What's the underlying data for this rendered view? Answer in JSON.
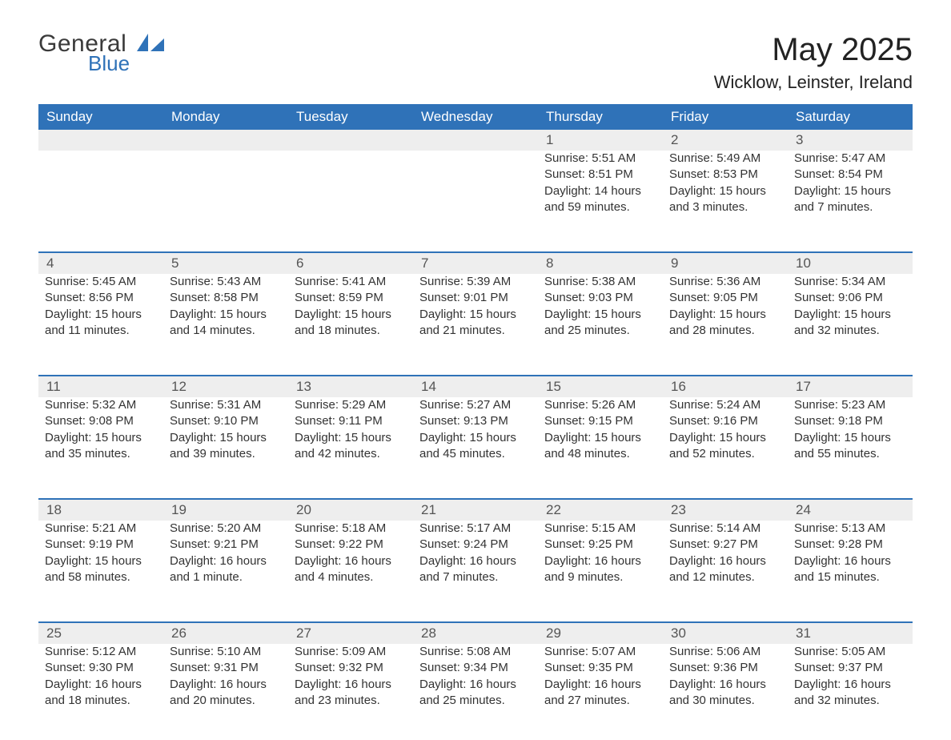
{
  "logo": {
    "line1": "General",
    "line2": "Blue",
    "color_text": "#3a3a3a",
    "color_accent": "#2f72b8"
  },
  "header": {
    "month_title": "May 2025",
    "location": "Wicklow, Leinster, Ireland"
  },
  "theme": {
    "header_bg": "#2f72b8",
    "header_fg": "#ffffff",
    "daynum_bg": "#eeeeee",
    "daynum_fg": "#555555",
    "body_fg": "#333333",
    "divider_color": "#2f72b8",
    "page_bg": "#ffffff",
    "font_family": "Arial, Helvetica, sans-serif",
    "month_title_fontsize": 40,
    "location_fontsize": 22,
    "weekday_fontsize": 17,
    "daynum_fontsize": 17,
    "cell_fontsize": 15
  },
  "calendar": {
    "type": "table",
    "weekdays": [
      "Sunday",
      "Monday",
      "Tuesday",
      "Wednesday",
      "Thursday",
      "Friday",
      "Saturday"
    ],
    "weeks": [
      [
        null,
        null,
        null,
        null,
        {
          "n": "1",
          "sunrise": "Sunrise: 5:51 AM",
          "sunset": "Sunset: 8:51 PM",
          "d1": "Daylight: 14 hours",
          "d2": "and 59 minutes."
        },
        {
          "n": "2",
          "sunrise": "Sunrise: 5:49 AM",
          "sunset": "Sunset: 8:53 PM",
          "d1": "Daylight: 15 hours",
          "d2": "and 3 minutes."
        },
        {
          "n": "3",
          "sunrise": "Sunrise: 5:47 AM",
          "sunset": "Sunset: 8:54 PM",
          "d1": "Daylight: 15 hours",
          "d2": "and 7 minutes."
        }
      ],
      [
        {
          "n": "4",
          "sunrise": "Sunrise: 5:45 AM",
          "sunset": "Sunset: 8:56 PM",
          "d1": "Daylight: 15 hours",
          "d2": "and 11 minutes."
        },
        {
          "n": "5",
          "sunrise": "Sunrise: 5:43 AM",
          "sunset": "Sunset: 8:58 PM",
          "d1": "Daylight: 15 hours",
          "d2": "and 14 minutes."
        },
        {
          "n": "6",
          "sunrise": "Sunrise: 5:41 AM",
          "sunset": "Sunset: 8:59 PM",
          "d1": "Daylight: 15 hours",
          "d2": "and 18 minutes."
        },
        {
          "n": "7",
          "sunrise": "Sunrise: 5:39 AM",
          "sunset": "Sunset: 9:01 PM",
          "d1": "Daylight: 15 hours",
          "d2": "and 21 minutes."
        },
        {
          "n": "8",
          "sunrise": "Sunrise: 5:38 AM",
          "sunset": "Sunset: 9:03 PM",
          "d1": "Daylight: 15 hours",
          "d2": "and 25 minutes."
        },
        {
          "n": "9",
          "sunrise": "Sunrise: 5:36 AM",
          "sunset": "Sunset: 9:05 PM",
          "d1": "Daylight: 15 hours",
          "d2": "and 28 minutes."
        },
        {
          "n": "10",
          "sunrise": "Sunrise: 5:34 AM",
          "sunset": "Sunset: 9:06 PM",
          "d1": "Daylight: 15 hours",
          "d2": "and 32 minutes."
        }
      ],
      [
        {
          "n": "11",
          "sunrise": "Sunrise: 5:32 AM",
          "sunset": "Sunset: 9:08 PM",
          "d1": "Daylight: 15 hours",
          "d2": "and 35 minutes."
        },
        {
          "n": "12",
          "sunrise": "Sunrise: 5:31 AM",
          "sunset": "Sunset: 9:10 PM",
          "d1": "Daylight: 15 hours",
          "d2": "and 39 minutes."
        },
        {
          "n": "13",
          "sunrise": "Sunrise: 5:29 AM",
          "sunset": "Sunset: 9:11 PM",
          "d1": "Daylight: 15 hours",
          "d2": "and 42 minutes."
        },
        {
          "n": "14",
          "sunrise": "Sunrise: 5:27 AM",
          "sunset": "Sunset: 9:13 PM",
          "d1": "Daylight: 15 hours",
          "d2": "and 45 minutes."
        },
        {
          "n": "15",
          "sunrise": "Sunrise: 5:26 AM",
          "sunset": "Sunset: 9:15 PM",
          "d1": "Daylight: 15 hours",
          "d2": "and 48 minutes."
        },
        {
          "n": "16",
          "sunrise": "Sunrise: 5:24 AM",
          "sunset": "Sunset: 9:16 PM",
          "d1": "Daylight: 15 hours",
          "d2": "and 52 minutes."
        },
        {
          "n": "17",
          "sunrise": "Sunrise: 5:23 AM",
          "sunset": "Sunset: 9:18 PM",
          "d1": "Daylight: 15 hours",
          "d2": "and 55 minutes."
        }
      ],
      [
        {
          "n": "18",
          "sunrise": "Sunrise: 5:21 AM",
          "sunset": "Sunset: 9:19 PM",
          "d1": "Daylight: 15 hours",
          "d2": "and 58 minutes."
        },
        {
          "n": "19",
          "sunrise": "Sunrise: 5:20 AM",
          "sunset": "Sunset: 9:21 PM",
          "d1": "Daylight: 16 hours",
          "d2": "and 1 minute."
        },
        {
          "n": "20",
          "sunrise": "Sunrise: 5:18 AM",
          "sunset": "Sunset: 9:22 PM",
          "d1": "Daylight: 16 hours",
          "d2": "and 4 minutes."
        },
        {
          "n": "21",
          "sunrise": "Sunrise: 5:17 AM",
          "sunset": "Sunset: 9:24 PM",
          "d1": "Daylight: 16 hours",
          "d2": "and 7 minutes."
        },
        {
          "n": "22",
          "sunrise": "Sunrise: 5:15 AM",
          "sunset": "Sunset: 9:25 PM",
          "d1": "Daylight: 16 hours",
          "d2": "and 9 minutes."
        },
        {
          "n": "23",
          "sunrise": "Sunrise: 5:14 AM",
          "sunset": "Sunset: 9:27 PM",
          "d1": "Daylight: 16 hours",
          "d2": "and 12 minutes."
        },
        {
          "n": "24",
          "sunrise": "Sunrise: 5:13 AM",
          "sunset": "Sunset: 9:28 PM",
          "d1": "Daylight: 16 hours",
          "d2": "and 15 minutes."
        }
      ],
      [
        {
          "n": "25",
          "sunrise": "Sunrise: 5:12 AM",
          "sunset": "Sunset: 9:30 PM",
          "d1": "Daylight: 16 hours",
          "d2": "and 18 minutes."
        },
        {
          "n": "26",
          "sunrise": "Sunrise: 5:10 AM",
          "sunset": "Sunset: 9:31 PM",
          "d1": "Daylight: 16 hours",
          "d2": "and 20 minutes."
        },
        {
          "n": "27",
          "sunrise": "Sunrise: 5:09 AM",
          "sunset": "Sunset: 9:32 PM",
          "d1": "Daylight: 16 hours",
          "d2": "and 23 minutes."
        },
        {
          "n": "28",
          "sunrise": "Sunrise: 5:08 AM",
          "sunset": "Sunset: 9:34 PM",
          "d1": "Daylight: 16 hours",
          "d2": "and 25 minutes."
        },
        {
          "n": "29",
          "sunrise": "Sunrise: 5:07 AM",
          "sunset": "Sunset: 9:35 PM",
          "d1": "Daylight: 16 hours",
          "d2": "and 27 minutes."
        },
        {
          "n": "30",
          "sunrise": "Sunrise: 5:06 AM",
          "sunset": "Sunset: 9:36 PM",
          "d1": "Daylight: 16 hours",
          "d2": "and 30 minutes."
        },
        {
          "n": "31",
          "sunrise": "Sunrise: 5:05 AM",
          "sunset": "Sunset: 9:37 PM",
          "d1": "Daylight: 16 hours",
          "d2": "and 32 minutes."
        }
      ]
    ]
  }
}
